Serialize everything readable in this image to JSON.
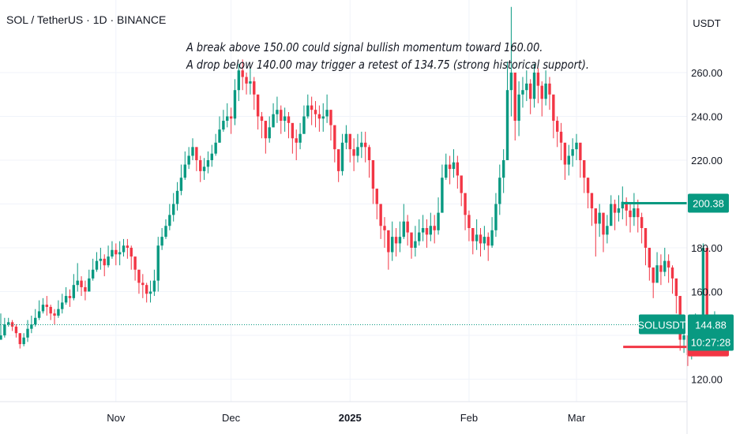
{
  "header": {
    "symbol": "SOL / TetherUS · 1D · BINANCE"
  },
  "annotation": {
    "line1": "A break above 150.00 could signal bullish momentum toward 160.00.",
    "line2": "A drop below 140.00 may trigger a retest of 134.75 (strong historical support)."
  },
  "colors": {
    "up": "#089981",
    "down": "#f23645",
    "grid": "#f0f3fa",
    "text": "#131722"
  },
  "chart_data": {
    "type": "candlestick",
    "currency": "USDT",
    "ylim": [
      110,
      273
    ],
    "y_ticks": [
      "120.00",
      "140.00",
      "160.00",
      "180.00",
      "200.00",
      "220.00",
      "240.00",
      "260.00"
    ],
    "x_labels": [
      {
        "label": "Nov",
        "index": 30,
        "bold": false
      },
      {
        "label": "Dec",
        "index": 60,
        "bold": false
      },
      {
        "label": "2025",
        "index": 91,
        "bold": true
      },
      {
        "label": "Feb",
        "index": 122,
        "bold": false
      },
      {
        "label": "Mar",
        "index": 150,
        "bold": false
      }
    ],
    "last_price": {
      "symbol": "SOLUSDT",
      "value": "144.88",
      "countdown": "10:27:28",
      "price": 144.88
    },
    "levels": [
      {
        "label": "200.38",
        "price": 200.38,
        "color": "#089981",
        "start_index": 156
      },
      {
        "label": "134.75",
        "price": 134.75,
        "color": "#f23645",
        "start_index": 156
      }
    ],
    "series": [
      {
        "closes": [
          140,
          145,
          146,
          144,
          141,
          136,
          139,
          143,
          145,
          148,
          151,
          154,
          153,
          150,
          149,
          152,
          155,
          158,
          157,
          163,
          165,
          162,
          160,
          166,
          170,
          174,
          175,
          172,
          176,
          179,
          177,
          178,
          181,
          180,
          176,
          170,
          164,
          163,
          159,
          160,
          165,
          181,
          185,
          190,
          195,
          200,
          206,
          212,
          218,
          222,
          226,
          220,
          215,
          217,
          220,
          223,
          228,
          234,
          238,
          240,
          239,
          252,
          261,
          258,
          255,
          256,
          250,
          240,
          238,
          230,
          235,
          241,
          243,
          238,
          240,
          237,
          230,
          228,
          232,
          240,
          245,
          243,
          241,
          239,
          240,
          243,
          236,
          225,
          215,
          228,
          232,
          225,
          222,
          226,
          228,
          226,
          220,
          207,
          200,
          190,
          188,
          178,
          185,
          182,
          185,
          192,
          187,
          180,
          183,
          187,
          189,
          186,
          190,
          188,
          196,
          212,
          218,
          216,
          219,
          213,
          205,
          195,
          189,
          183,
          186,
          182,
          185,
          181,
          188,
          200,
          212,
          220,
          252,
          260,
          238,
          250,
          252,
          255,
          248,
          260,
          254,
          248,
          255,
          250,
          238,
          233,
          228,
          218,
          222,
          225,
          228,
          220,
          212,
          205,
          198,
          191,
          196,
          186,
          190,
          200,
          196,
          198,
          201,
          197,
          194,
          198,
          194,
          189,
          180,
          171,
          164,
          172,
          169,
          174,
          171,
          166,
          158,
          138,
          140,
          131,
          136,
          145,
          141,
          180,
          141,
          143,
          145
        ],
        "wicks": [
          [
            138,
            150
          ],
          [
            139,
            148
          ],
          [
            144,
            148
          ],
          [
            142,
            147
          ],
          [
            139,
            145
          ],
          [
            134,
            141
          ],
          [
            135,
            141
          ],
          [
            137,
            147
          ],
          [
            141,
            149
          ],
          [
            144,
            152
          ],
          [
            147,
            156
          ],
          [
            150,
            157
          ],
          [
            149,
            158
          ],
          [
            147,
            154
          ],
          [
            145,
            152
          ],
          [
            148,
            156
          ],
          [
            150,
            159
          ],
          [
            154,
            162
          ],
          [
            153,
            161
          ],
          [
            156,
            168
          ],
          [
            160,
            173
          ],
          [
            158,
            167
          ],
          [
            156,
            165
          ],
          [
            160,
            170
          ],
          [
            165,
            175
          ],
          [
            169,
            178
          ],
          [
            170,
            180
          ],
          [
            167,
            177
          ],
          [
            171,
            181
          ],
          [
            175,
            183
          ],
          [
            172,
            182
          ],
          [
            172,
            183
          ],
          [
            176,
            184
          ],
          [
            175,
            184
          ],
          [
            170,
            181
          ],
          [
            165,
            174
          ],
          [
            159,
            169
          ],
          [
            157,
            168
          ],
          [
            155,
            164
          ],
          [
            155,
            165
          ],
          [
            158,
            170
          ],
          [
            160,
            185
          ],
          [
            179,
            189
          ],
          [
            184,
            193
          ],
          [
            188,
            200
          ],
          [
            192,
            205
          ],
          [
            197,
            210
          ],
          [
            204,
            218
          ],
          [
            211,
            224
          ],
          [
            216,
            226
          ],
          [
            220,
            230
          ],
          [
            215,
            226
          ],
          [
            210,
            222
          ],
          [
            211,
            221
          ],
          [
            214,
            224
          ],
          [
            217,
            227
          ],
          [
            222,
            232
          ],
          [
            228,
            240
          ],
          [
            233,
            243
          ],
          [
            235,
            246
          ],
          [
            232,
            244
          ],
          [
            236,
            257
          ],
          [
            247,
            264
          ],
          [
            252,
            266
          ],
          [
            250,
            260
          ],
          [
            250,
            262
          ],
          [
            243,
            258
          ],
          [
            234,
            245
          ],
          [
            230,
            242
          ],
          [
            223,
            237
          ],
          [
            228,
            240
          ],
          [
            235,
            246
          ],
          [
            237,
            249
          ],
          [
            232,
            245
          ],
          [
            233,
            244
          ],
          [
            230,
            242
          ],
          [
            223,
            236
          ],
          [
            220,
            234
          ],
          [
            225,
            237
          ],
          [
            232,
            245
          ],
          [
            239,
            250
          ],
          [
            236,
            249
          ],
          [
            235,
            247
          ],
          [
            233,
            245
          ],
          [
            233,
            246
          ],
          [
            237,
            250
          ],
          [
            229,
            243
          ],
          [
            219,
            233
          ],
          [
            210,
            222
          ],
          [
            213,
            232
          ],
          [
            225,
            236
          ],
          [
            219,
            229
          ],
          [
            215,
            230
          ],
          [
            219,
            232
          ],
          [
            221,
            233
          ],
          [
            219,
            233
          ],
          [
            212,
            227
          ],
          [
            200,
            213
          ],
          [
            193,
            206
          ],
          [
            184,
            196
          ],
          [
            180,
            194
          ],
          [
            170,
            185
          ],
          [
            174,
            192
          ],
          [
            176,
            189
          ],
          [
            178,
            192
          ],
          [
            184,
            200
          ],
          [
            181,
            195
          ],
          [
            175,
            186
          ],
          [
            176,
            190
          ],
          [
            181,
            193
          ],
          [
            183,
            195
          ],
          [
            180,
            193
          ],
          [
            183,
            196
          ],
          [
            182,
            195
          ],
          [
            186,
            203
          ],
          [
            196,
            218
          ],
          [
            211,
            223
          ],
          [
            209,
            222
          ],
          [
            212,
            225
          ],
          [
            207,
            222
          ],
          [
            199,
            212
          ],
          [
            188,
            200
          ],
          [
            183,
            197
          ],
          [
            177,
            189
          ],
          [
            179,
            193
          ],
          [
            176,
            189
          ],
          [
            179,
            190
          ],
          [
            174,
            187
          ],
          [
            180,
            194
          ],
          [
            185,
            205
          ],
          [
            195,
            218
          ],
          [
            205,
            225
          ],
          [
            220,
            265
          ],
          [
            240,
            290
          ],
          [
            229,
            254
          ],
          [
            231,
            256
          ],
          [
            244,
            258
          ],
          [
            247,
            261
          ],
          [
            241,
            257
          ],
          [
            244,
            264
          ],
          [
            246,
            262
          ],
          [
            240,
            256
          ],
          [
            245,
            261
          ],
          [
            243,
            258
          ],
          [
            230,
            245
          ],
          [
            226,
            240
          ],
          [
            220,
            237
          ],
          [
            211,
            225
          ],
          [
            213,
            227
          ],
          [
            217,
            230
          ],
          [
            220,
            232
          ],
          [
            212,
            226
          ],
          [
            205,
            218
          ],
          [
            198,
            212
          ],
          [
            190,
            205
          ],
          [
            176,
            198
          ],
          [
            185,
            200
          ],
          [
            178,
            194
          ],
          [
            182,
            195
          ],
          [
            191,
            204
          ],
          [
            188,
            202
          ],
          [
            192,
            204
          ],
          [
            193,
            208
          ],
          [
            190,
            203
          ],
          [
            187,
            200
          ],
          [
            190,
            205
          ],
          [
            187,
            202
          ],
          [
            182,
            196
          ],
          [
            172,
            186
          ],
          [
            165,
            180
          ],
          [
            157,
            170
          ],
          [
            165,
            178
          ],
          [
            163,
            177
          ],
          [
            167,
            180
          ],
          [
            164,
            177
          ],
          [
            159,
            172
          ],
          [
            150,
            165
          ],
          [
            133,
            148
          ],
          [
            132,
            147
          ],
          [
            126,
            140
          ],
          [
            129,
            143
          ],
          [
            138,
            150
          ],
          [
            134,
            148
          ],
          [
            140,
            182
          ],
          [
            136,
            150
          ],
          [
            138,
            148
          ],
          [
            139,
            151
          ]
        ]
      }
    ]
  }
}
